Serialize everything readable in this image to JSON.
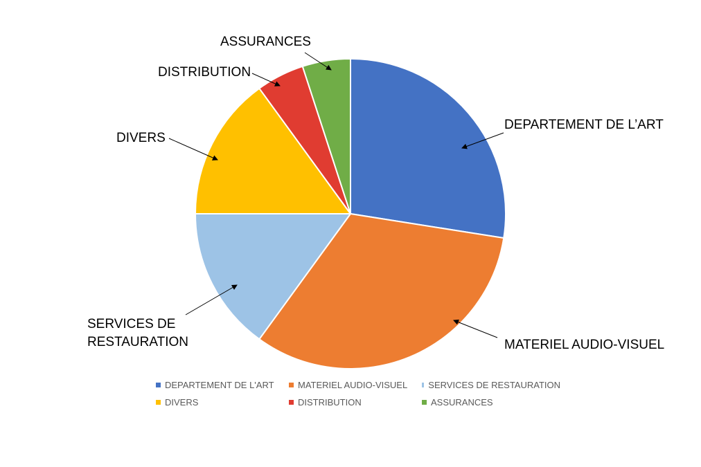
{
  "chart_data": {
    "type": "pie",
    "title": "",
    "categories": [
      "DEPARTEMENT DE L'ART",
      "MATERIEL AUDIO-VISUEL",
      "SERVICES DE RESTAURATION",
      "DIVERS",
      "DISTRIBUTION",
      "ASSURANCES"
    ],
    "values": [
      27.5,
      32.5,
      15,
      15,
      5,
      5
    ],
    "colors": [
      "#4472C4",
      "#ED7D31",
      "#9DC3E6",
      "#FFC000",
      "#E03C31",
      "#70AD47"
    ],
    "start_angle": "12 o'clock, clockwise",
    "legend": "bottom",
    "callout_labels": [
      [
        "DEPARTEMENT DE L’ART"
      ],
      [
        "MATERIEL AUDIO-VISUEL"
      ],
      [
        "SERVICES DE",
        "RESTAURATION"
      ],
      [
        "DIVERS"
      ],
      [
        "DISTRIBUTION"
      ],
      [
        "ASSURANCES"
      ]
    ]
  }
}
